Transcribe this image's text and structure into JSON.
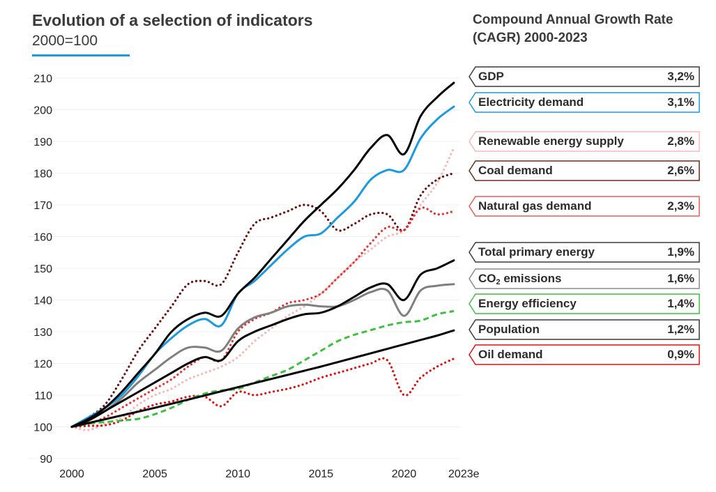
{
  "chart_data": {
    "type": "line",
    "title": "Evolution of a selection of indicators",
    "subtitle": "2000=100",
    "legend_title": "Compound Annual Growth Rate (CAGR) 2000-2023",
    "xlabel": "",
    "ylabel": "",
    "xlim": [
      2000,
      2023
    ],
    "ylim": [
      90,
      210
    ],
    "yticks": [
      "210",
      "200",
      "190",
      "180",
      "170",
      "160",
      "150",
      "140",
      "130",
      "120",
      "110",
      "100",
      "90"
    ],
    "xticks": [
      "2000",
      "2005",
      "2010",
      "2015",
      "2020",
      "2023e"
    ],
    "x": [
      2000,
      2001,
      2002,
      2003,
      2004,
      2005,
      2006,
      2007,
      2008,
      2009,
      2010,
      2011,
      2012,
      2013,
      2014,
      2015,
      2016,
      2017,
      2018,
      2019,
      2020,
      2021,
      2022,
      2023
    ],
    "series": [
      {
        "name": "GDP",
        "cagr": "3,2%",
        "color": "#000000",
        "style": "solid",
        "values": [
          100,
          102.5,
          106,
          111,
          117,
          123,
          130,
          134,
          136,
          135,
          142,
          147,
          153,
          159,
          165,
          170,
          175,
          181,
          188,
          192,
          186,
          198,
          204,
          208.5
        ]
      },
      {
        "name": "Electricity demand",
        "cagr": "3,1%",
        "color": "#1a9ae0",
        "style": "solid",
        "values": [
          100,
          103,
          106,
          110,
          116,
          123,
          128,
          132,
          134,
          132,
          142,
          146,
          151,
          156,
          160,
          161,
          166,
          171,
          178,
          181,
          181,
          191,
          197,
          201
        ]
      },
      {
        "name": "Renewable energy supply",
        "cagr": "2,8%",
        "color": "#f5b8b8",
        "style": "dotted",
        "values": [
          100,
          99,
          101,
          103,
          107,
          110,
          112,
          115,
          117,
          119,
          122,
          127,
          131,
          135,
          138,
          142,
          147,
          152,
          156,
          160,
          162,
          170,
          177,
          188
        ]
      },
      {
        "name": "Coal demand",
        "cagr": "2,6%",
        "color": "#6b0d0d",
        "style": "dotted",
        "values": [
          100,
          103,
          107,
          115,
          124,
          131,
          138,
          145,
          146,
          145,
          155,
          164,
          166,
          168,
          170,
          168,
          162,
          164,
          167,
          167,
          162,
          173,
          178,
          180
        ]
      },
      {
        "name": "Natural gas demand",
        "cagr": "2,3%",
        "color": "#e83030",
        "style": "dotted",
        "values": [
          100,
          101,
          103,
          106,
          109,
          112,
          115,
          119,
          122,
          121,
          130,
          134,
          136,
          139,
          140,
          142,
          147,
          152,
          158,
          163,
          162,
          169,
          167,
          168
        ]
      },
      {
        "name": "Total primary energy",
        "cagr": "1,9%",
        "color": "#000000",
        "style": "solid",
        "values": [
          100,
          102,
          105,
          108,
          111,
          114,
          117,
          120,
          122,
          121,
          127,
          130,
          132,
          134,
          135.5,
          136,
          138,
          141,
          144,
          145,
          140,
          148,
          150,
          152.5
        ]
      },
      {
        "name": "CO2 emissions",
        "cagr": "1,6%",
        "color": "#7f7f7f",
        "style": "solid",
        "values": [
          100,
          102,
          105,
          109,
          114,
          118,
          122,
          125,
          125,
          124,
          131,
          134.5,
          136,
          138,
          138.5,
          138,
          138,
          140,
          142.5,
          143,
          135,
          143,
          144.5,
          145
        ]
      },
      {
        "name": "Energy efficiency",
        "cagr": "1,4%",
        "color": "#3fbf3f",
        "style": "dashed",
        "values": [
          100,
          101,
          101.5,
          102,
          102.5,
          104,
          106,
          108.5,
          110.5,
          111.5,
          112,
          114,
          116,
          118,
          121,
          124,
          127,
          129,
          130.5,
          132,
          133,
          133.5,
          135.5,
          136.5
        ]
      },
      {
        "name": "Population",
        "cagr": "1,2%",
        "color": "#000000",
        "style": "solid",
        "values": [
          100,
          101.2,
          102.4,
          103.6,
          104.8,
          106,
          107.3,
          108.6,
          109.9,
          111.2,
          112.5,
          113.8,
          115.1,
          116.4,
          117.7,
          119,
          120.4,
          121.8,
          123.2,
          124.6,
          126,
          127.4,
          128.8,
          130.4
        ]
      },
      {
        "name": "Oil demand",
        "cagr": "0,9%",
        "color": "#e01010",
        "style": "dotted",
        "values": [
          100,
          100.3,
          100.5,
          102,
          105,
          107,
          108,
          109.5,
          109.5,
          106.5,
          111,
          110,
          111,
          112,
          113.5,
          115.5,
          117,
          118.5,
          120,
          121,
          110,
          115.5,
          119,
          121.5
        ]
      }
    ],
    "legend": [
      {
        "label": "GDP",
        "value": "3,2%",
        "border": "#3a3a3a"
      },
      {
        "label": "Electricity demand",
        "value": "3,1%",
        "border": "#1a9ae0"
      },
      {
        "label": "Renewable energy supply",
        "value": "2,8%",
        "border": "#f5b8b8"
      },
      {
        "label": "Coal demand",
        "value": "2,6%",
        "border": "#6b2a1a"
      },
      {
        "label": "Natural gas demand",
        "value": "2,3%",
        "border": "#e85a5a"
      },
      {
        "label": "Total primary energy",
        "value": "1,9%",
        "border": "#3a3a3a"
      },
      {
        "label": "CO",
        "label_sub": "2",
        "label_rest": " emissions",
        "value": "1,6%",
        "border": "#8a8a8a"
      },
      {
        "label": "Energy efficiency",
        "value": "1,4%",
        "border": "#3fbf3f"
      },
      {
        "label": "Population",
        "value": "1,2%",
        "border": "#3a3a3a"
      },
      {
        "label": "Oil demand",
        "value": "0,9%",
        "border": "#e01010"
      }
    ]
  }
}
